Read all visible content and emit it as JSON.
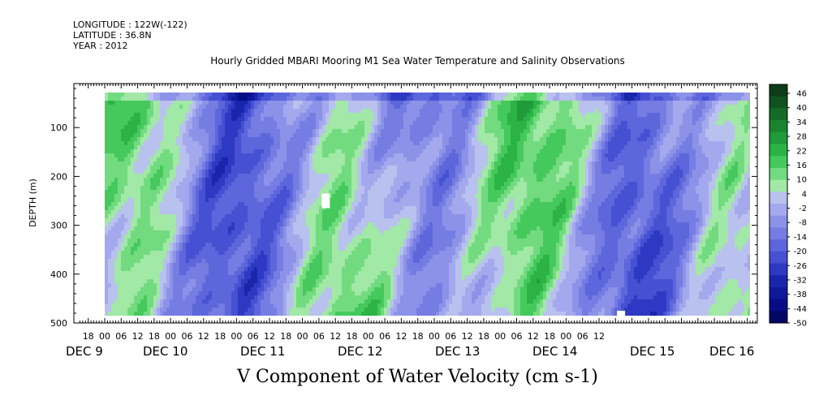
{
  "header": {
    "longitude": "LONGITUDE : 122W(-122)",
    "latitude": "LATITUDE : 36.8N",
    "year": "YEAR : 2012"
  },
  "chart_data": {
    "type": "heatmap",
    "title": "Hourly Gridded MBARI Mooring M1 Sea Water Temperature and Salinity Observations",
    "main_label": "V Component of Water Velocity (cm s-1)",
    "ylabel": "DEPTH (m)",
    "y_ticks": [
      "100",
      "200",
      "300",
      "400",
      "500"
    ],
    "y_range": [
      10,
      500
    ],
    "y_reversed": true,
    "hour_ticks": [
      "18",
      "00",
      "06",
      "12",
      "18",
      "00",
      "06",
      "12",
      "18",
      "00",
      "06",
      "12",
      "18",
      "00",
      "06",
      "12",
      "18",
      "00",
      "06",
      "12",
      "18",
      "00",
      "06",
      "12",
      "18",
      "00",
      "06",
      "12",
      "18",
      "00",
      "06",
      "12"
    ],
    "day_labels": [
      "DEC  9",
      "DEC 10",
      "DEC 11",
      "DEC 12",
      "DEC 13",
      "DEC 14",
      "DEC 15",
      "DEC 16"
    ],
    "colorbar": {
      "labels": [
        "46",
        "40",
        "34",
        "28",
        "22",
        "16",
        "10",
        "4",
        "-2",
        "-8",
        "-14",
        "-20",
        "-26",
        "-32",
        "-38",
        "-44",
        "-50"
      ],
      "colors": [
        "#0b3d18",
        "#10531f",
        "#146b27",
        "#1a8430",
        "#1f9b39",
        "#2bb346",
        "#46c95c",
        "#72db80",
        "#a2e8a6",
        "#b9c1ee",
        "#a3a9ec",
        "#8c92e8",
        "#757ce2",
        "#5d66db",
        "#4650d2",
        "#2e39c3",
        "#1926ab",
        "#0e189a",
        "#070d84",
        "#020766"
      ]
    },
    "series_note": "",
    "blanks": [
      {
        "time_hours": 80.5,
        "depth": [
          235,
          265
        ]
      },
      {
        "time_hours": 188.0,
        "depth": [
          475,
          490
        ]
      }
    ]
  }
}
